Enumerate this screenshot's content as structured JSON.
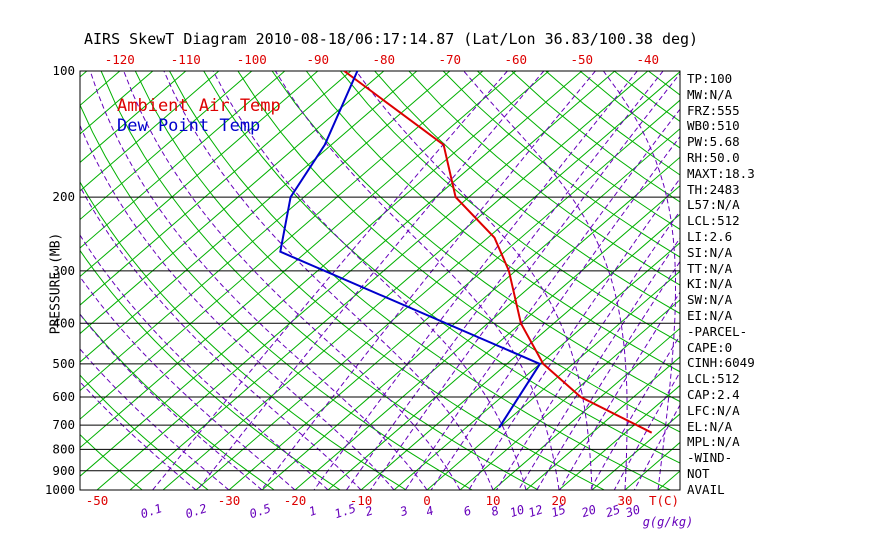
{
  "chart_data": {
    "type": "line",
    "variant": "skew-t-log-p",
    "title": "AIRS SkewT Diagram 2010-08-18/06:17:14.87 (Lat/Lon 36.83/100.38 deg)",
    "ylabel": "PRESSURE (MB)",
    "xlabel": "T(C)",
    "x2label": "g(g/kg)",
    "ylim": [
      100,
      1000
    ],
    "grid": "horizontal-pressure-lines",
    "legend_position": "top-left-inside",
    "pressure_ticks": [
      100,
      200,
      300,
      400,
      500,
      600,
      700,
      800,
      900,
      1000
    ],
    "top_temp_ticks": [
      -120,
      -110,
      -100,
      -90,
      -80,
      -70,
      -60,
      -50,
      -40
    ],
    "bottom_temp_ticks": [
      -50,
      -30,
      -20,
      -10,
      0,
      10,
      20,
      30
    ],
    "mixing_ratio_ticks": [
      0.1,
      0.2,
      0.5,
      1,
      1.5,
      2,
      3,
      4,
      6,
      8,
      10,
      12,
      15,
      20,
      25,
      30
    ],
    "series": [
      {
        "name": "Ambient Air Temp",
        "color": "#dd0000",
        "points_p_t": [
          [
            100,
            -86
          ],
          [
            150,
            -58
          ],
          [
            200,
            -47
          ],
          [
            250,
            -34
          ],
          [
            300,
            -26
          ],
          [
            400,
            -15
          ],
          [
            500,
            -4.5
          ],
          [
            600,
            7
          ],
          [
            730,
            24
          ]
        ]
      },
      {
        "name": "Dew Point Temp",
        "color": "#0000cc",
        "points_p_t": [
          [
            100,
            -84
          ],
          [
            150,
            -76
          ],
          [
            200,
            -72
          ],
          [
            270,
            -64
          ],
          [
            500,
            -5
          ],
          [
            710,
            0
          ]
        ]
      }
    ],
    "reference_lines": {
      "isotherms_C": {
        "from": -130,
        "to": 40,
        "step": 5,
        "color": "#00b000"
      },
      "dry_adiabats_K": {
        "from": 220,
        "to": 460,
        "step": 10,
        "color": "#00b000"
      },
      "moist_adiabats_C": {
        "from": -35,
        "to": 40,
        "step": 5,
        "color": "#6600bb"
      },
      "mixing_ratio_lines_g_kg": {
        "values": [
          0.1,
          0.2,
          0.5,
          1,
          1.5,
          2,
          3,
          4,
          6,
          8,
          10,
          12,
          15,
          20,
          25,
          30
        ],
        "color": "#6600bb"
      }
    }
  },
  "stats_panel": {
    "lines": [
      "TP:100",
      "MW:N/A",
      "FRZ:555",
      "WB0:510",
      "PW:5.68",
      "RH:50.0",
      "MAXT:18.3",
      "TH:2483",
      "L57:N/A",
      "LCL:512",
      "LI:2.6",
      "SI:N/A",
      "TT:N/A",
      "KI:N/A",
      "SW:N/A",
      "EI:N/A",
      "-PARCEL-",
      "CAPE:0",
      "CINH:6049",
      "LCL:512",
      "CAP:2.4",
      "LFC:N/A",
      "EL:N/A",
      "MPL:N/A",
      "-WIND-",
      "NOT",
      "AVAIL"
    ]
  }
}
